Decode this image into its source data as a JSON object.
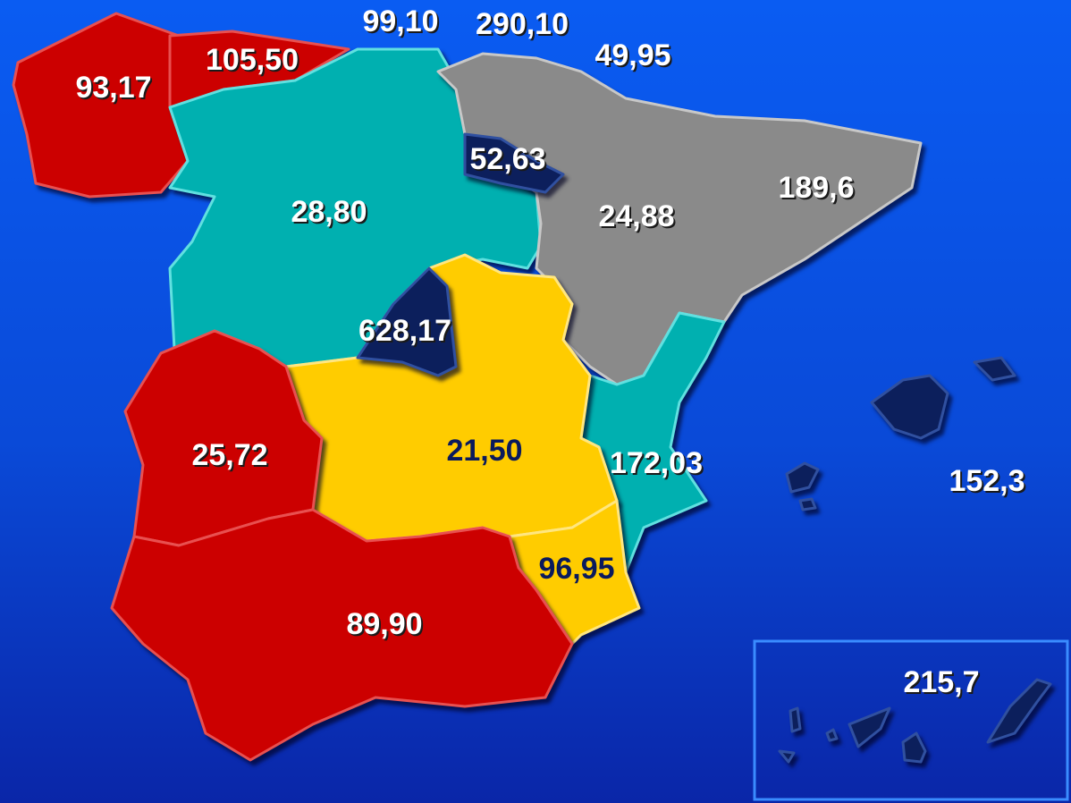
{
  "labels": [
    "93,17",
    "105,50",
    "99,10",
    "290,10",
    "49,95",
    "52,63",
    "28,80",
    "24,88",
    "189,6",
    "628,17",
    "21,50",
    "172,03",
    "96,95",
    "25,72",
    "89,90",
    "152,3",
    "215,7"
  ]
}
